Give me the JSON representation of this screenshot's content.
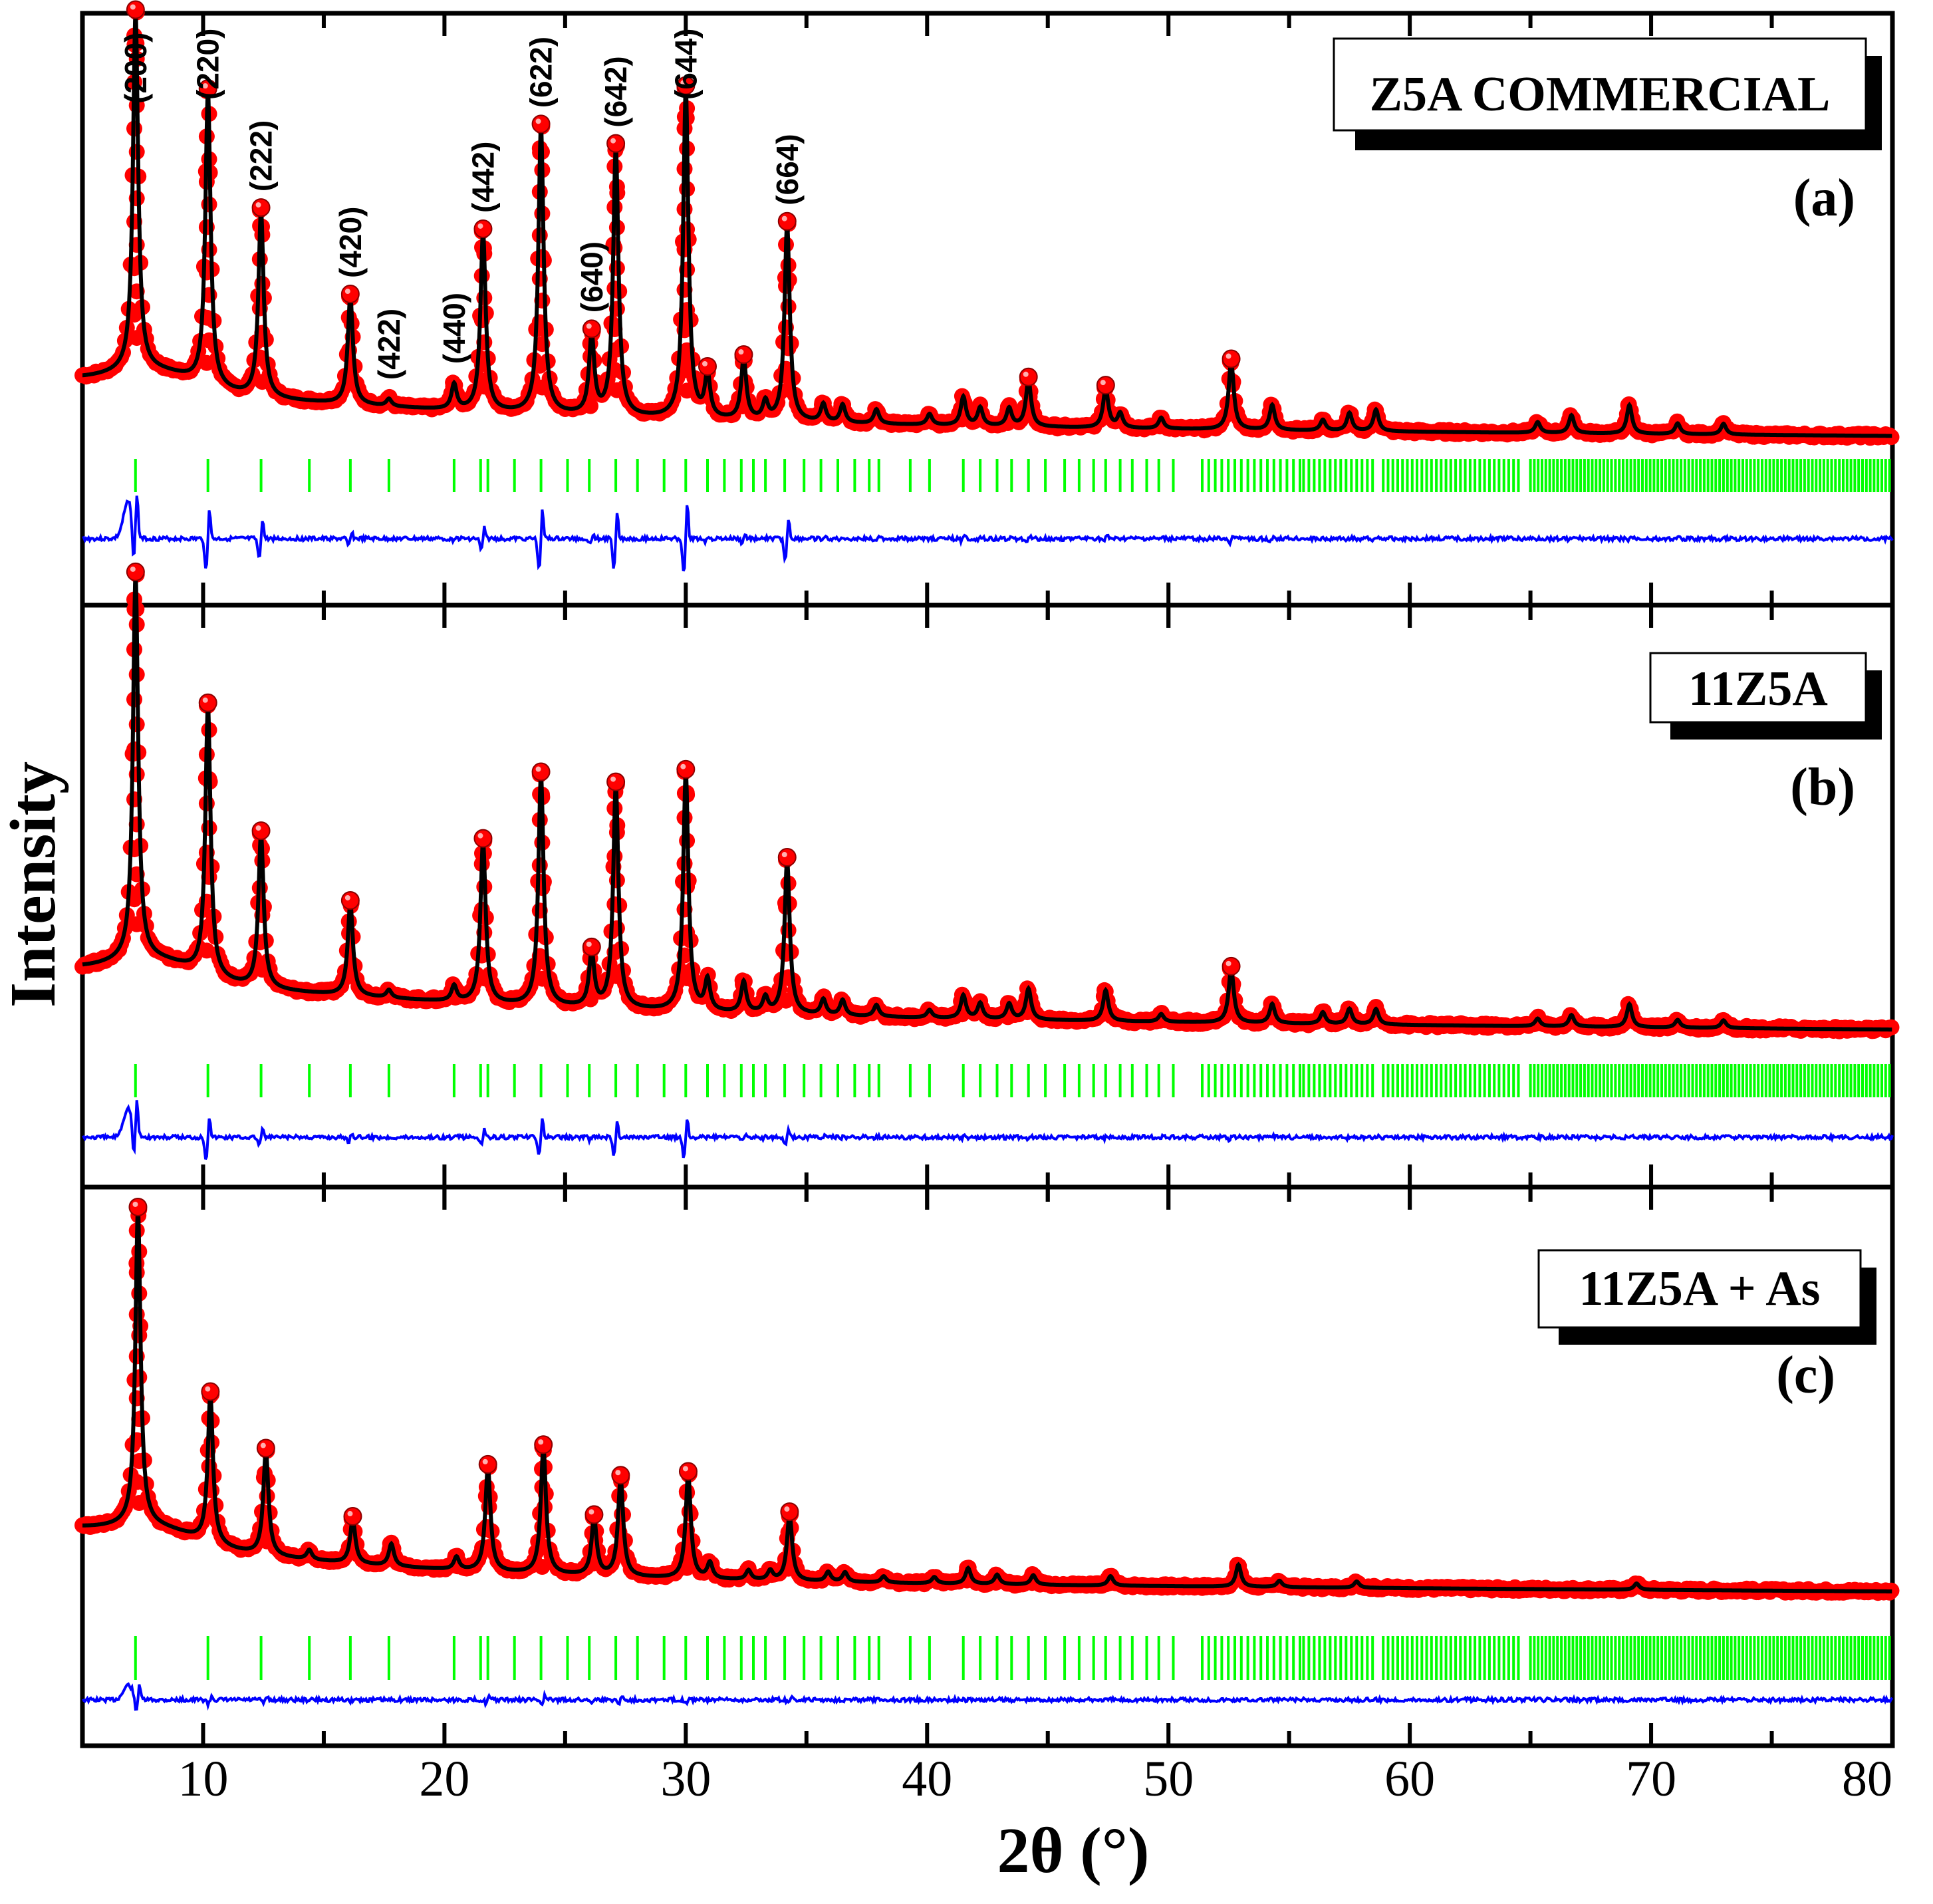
{
  "chart_data": {
    "type": "line",
    "xlabel": "2θ (°)",
    "ylabel": "Intensity",
    "xlim": [
      5,
      80
    ],
    "x_ticks": [
      10,
      20,
      30,
      40,
      50,
      60,
      70,
      80
    ],
    "colors": {
      "observed": "#ff0000",
      "calculated": "#000000",
      "bragg": "#00ff00",
      "difference": "#0000ff"
    },
    "panels": [
      {
        "letter": "(a)",
        "sample": "Z5A COMMERCIAL",
        "base": 0.12,
        "decay": 0.065,
        "diff_scale": 1.0,
        "peaks": [
          {
            "x": 7.2,
            "h": 1.0,
            "hkl": "(200)"
          },
          {
            "x": 10.2,
            "h": 0.82,
            "hkl": "(220)"
          },
          {
            "x": 12.4,
            "h": 0.52,
            "hkl": "(222)"
          },
          {
            "x": 16.1,
            "h": 0.3,
            "hkl": "(420)"
          },
          {
            "x": 17.7,
            "h": 0.02,
            "hkl": "(422)"
          },
          {
            "x": 20.4,
            "h": 0.07,
            "hkl": "(440)"
          },
          {
            "x": 21.6,
            "h": 0.5,
            "hkl": "(442)"
          },
          {
            "x": 24.0,
            "h": 0.8,
            "hkl": "(622)"
          },
          {
            "x": 26.1,
            "h": 0.22,
            "hkl": "(640)"
          },
          {
            "x": 27.1,
            "h": 0.75,
            "hkl": "(642)"
          },
          {
            "x": 30.0,
            "h": 0.92,
            "hkl": "(644)"
          },
          {
            "x": 30.9,
            "h": 0.12
          },
          {
            "x": 32.4,
            "h": 0.17
          },
          {
            "x": 33.3,
            "h": 0.05
          },
          {
            "x": 34.2,
            "h": 0.55,
            "hkl": "(664)"
          },
          {
            "x": 35.7,
            "h": 0.05
          },
          {
            "x": 36.5,
            "h": 0.05
          },
          {
            "x": 37.9,
            "h": 0.04
          },
          {
            "x": 40.1,
            "h": 0.03
          },
          {
            "x": 41.5,
            "h": 0.08
          },
          {
            "x": 42.2,
            "h": 0.05
          },
          {
            "x": 43.4,
            "h": 0.05
          },
          {
            "x": 44.2,
            "h": 0.13
          },
          {
            "x": 47.4,
            "h": 0.11
          },
          {
            "x": 48.0,
            "h": 0.04
          },
          {
            "x": 49.7,
            "h": 0.03
          },
          {
            "x": 52.6,
            "h": 0.19
          },
          {
            "x": 54.3,
            "h": 0.07
          },
          {
            "x": 56.4,
            "h": 0.03
          },
          {
            "x": 57.5,
            "h": 0.05
          },
          {
            "x": 58.6,
            "h": 0.06
          },
          {
            "x": 65.3,
            "h": 0.03
          },
          {
            "x": 66.7,
            "h": 0.05
          },
          {
            "x": 69.1,
            "h": 0.08
          },
          {
            "x": 71.1,
            "h": 0.03
          },
          {
            "x": 73.0,
            "h": 0.03
          }
        ]
      },
      {
        "letter": "(b)",
        "sample": "11Z5A",
        "base": 0.12,
        "decay": 0.065,
        "diff_scale": 0.8,
        "peaks": [
          {
            "x": 7.2,
            "h": 1.0
          },
          {
            "x": 10.2,
            "h": 0.7
          },
          {
            "x": 12.4,
            "h": 0.4
          },
          {
            "x": 16.1,
            "h": 0.24
          },
          {
            "x": 17.7,
            "h": 0.02
          },
          {
            "x": 20.4,
            "h": 0.04
          },
          {
            "x": 21.6,
            "h": 0.42
          },
          {
            "x": 24.0,
            "h": 0.6
          },
          {
            "x": 26.1,
            "h": 0.14
          },
          {
            "x": 27.1,
            "h": 0.58
          },
          {
            "x": 30.0,
            "h": 0.62
          },
          {
            "x": 30.9,
            "h": 0.08
          },
          {
            "x": 32.4,
            "h": 0.08
          },
          {
            "x": 33.3,
            "h": 0.04
          },
          {
            "x": 34.2,
            "h": 0.4
          },
          {
            "x": 35.7,
            "h": 0.04
          },
          {
            "x": 36.5,
            "h": 0.04
          },
          {
            "x": 37.9,
            "h": 0.03
          },
          {
            "x": 40.1,
            "h": 0.02
          },
          {
            "x": 41.5,
            "h": 0.06
          },
          {
            "x": 42.2,
            "h": 0.04
          },
          {
            "x": 43.4,
            "h": 0.04
          },
          {
            "x": 44.2,
            "h": 0.08
          },
          {
            "x": 47.4,
            "h": 0.08
          },
          {
            "x": 49.7,
            "h": 0.02
          },
          {
            "x": 52.6,
            "h": 0.14
          },
          {
            "x": 54.3,
            "h": 0.05
          },
          {
            "x": 56.4,
            "h": 0.03
          },
          {
            "x": 57.5,
            "h": 0.04
          },
          {
            "x": 58.6,
            "h": 0.04
          },
          {
            "x": 65.3,
            "h": 0.02
          },
          {
            "x": 66.7,
            "h": 0.03
          },
          {
            "x": 69.1,
            "h": 0.06
          },
          {
            "x": 71.1,
            "h": 0.02
          },
          {
            "x": 73.0,
            "h": 0.02
          }
        ]
      },
      {
        "letter": "(c)",
        "sample": "11Z5A + As",
        "base": 0.16,
        "decay": 0.09,
        "diff_scale": 0.4,
        "peaks": [
          {
            "x": 7.3,
            "h": 1.0
          },
          {
            "x": 10.3,
            "h": 0.47
          },
          {
            "x": 12.6,
            "h": 0.33
          },
          {
            "x": 14.4,
            "h": 0.03
          },
          {
            "x": 16.2,
            "h": 0.14
          },
          {
            "x": 17.8,
            "h": 0.07
          },
          {
            "x": 20.5,
            "h": 0.04
          },
          {
            "x": 21.8,
            "h": 0.33
          },
          {
            "x": 24.1,
            "h": 0.4
          },
          {
            "x": 26.2,
            "h": 0.18
          },
          {
            "x": 27.3,
            "h": 0.31
          },
          {
            "x": 30.1,
            "h": 0.33
          },
          {
            "x": 31.0,
            "h": 0.05
          },
          {
            "x": 32.6,
            "h": 0.03
          },
          {
            "x": 33.5,
            "h": 0.03
          },
          {
            "x": 34.3,
            "h": 0.21
          },
          {
            "x": 35.9,
            "h": 0.03
          },
          {
            "x": 36.6,
            "h": 0.03
          },
          {
            "x": 38.2,
            "h": 0.02
          },
          {
            "x": 40.3,
            "h": 0.02
          },
          {
            "x": 41.7,
            "h": 0.05
          },
          {
            "x": 42.9,
            "h": 0.03
          },
          {
            "x": 44.4,
            "h": 0.03
          },
          {
            "x": 47.6,
            "h": 0.03
          },
          {
            "x": 52.9,
            "h": 0.07
          },
          {
            "x": 54.6,
            "h": 0.02
          },
          {
            "x": 57.8,
            "h": 0.02
          },
          {
            "x": 69.4,
            "h": 0.02
          }
        ]
      }
    ],
    "bragg_positions": [
      7.2,
      10.2,
      12.4,
      14.4,
      16.1,
      17.7,
      20.4,
      21.5,
      21.8,
      22.9,
      24.0,
      25.1,
      26.0,
      27.1,
      28.0,
      29.1,
      30.0,
      30.9,
      31.6,
      32.3,
      32.8,
      33.3,
      34.1,
      34.9,
      35.6,
      36.3,
      37.0,
      37.6,
      38.0,
      39.3,
      40.1,
      41.5,
      42.2,
      42.9,
      43.5,
      44.2,
      44.9,
      45.7,
      46.3,
      46.9,
      47.4,
      48.0,
      48.5,
      49.1,
      49.6,
      50.2
    ]
  }
}
